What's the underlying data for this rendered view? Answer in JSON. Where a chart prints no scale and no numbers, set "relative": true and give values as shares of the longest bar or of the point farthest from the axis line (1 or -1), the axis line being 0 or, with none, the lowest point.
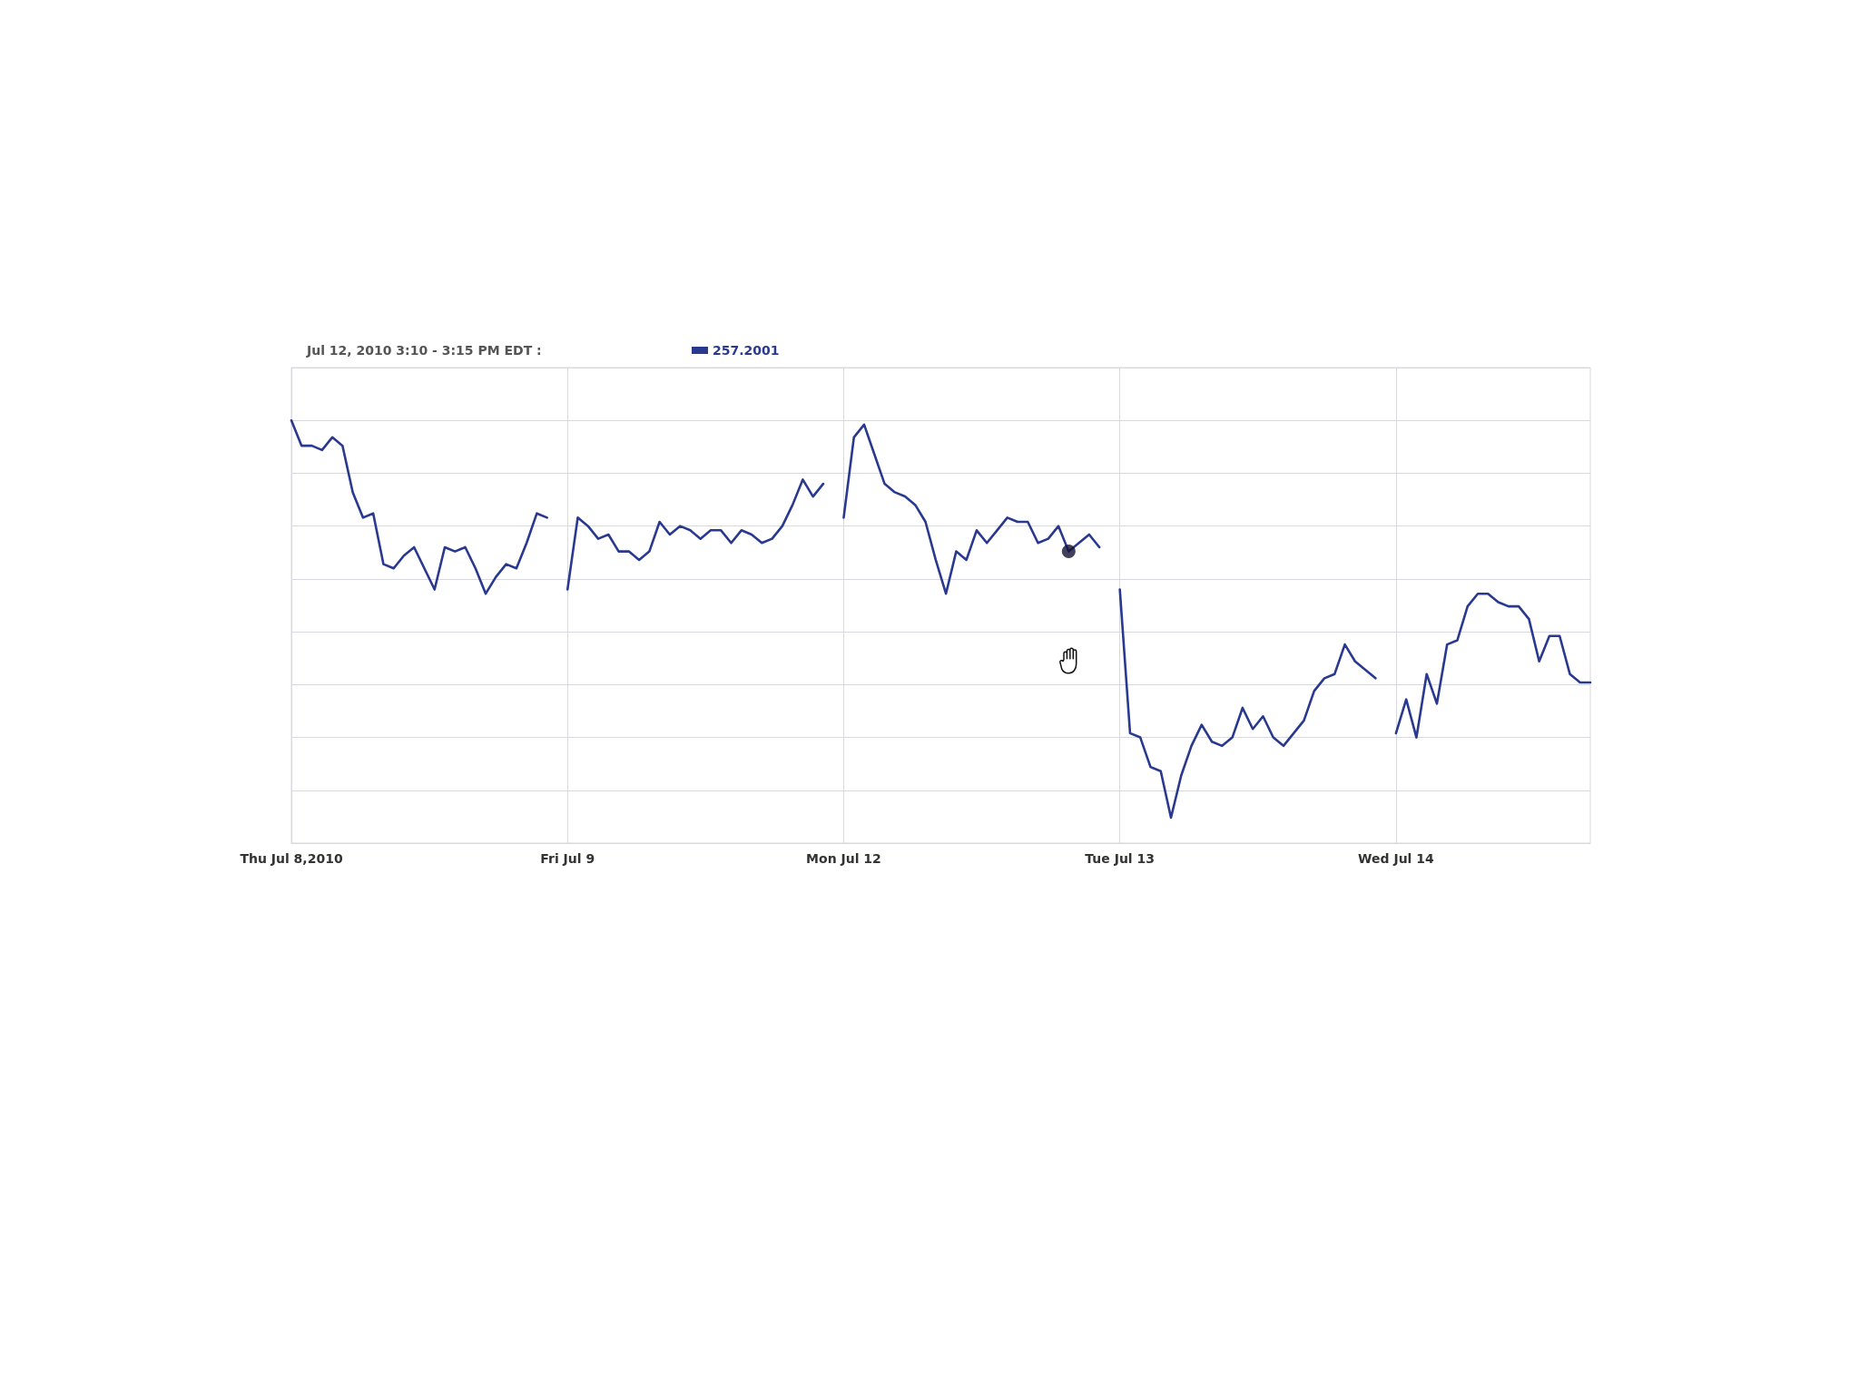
{
  "chart_data": {
    "type": "line",
    "title": "Jul 12, 2010 3:10 - 3:15 PM EDT :",
    "relative": true,
    "grid": true,
    "legend": "top left",
    "categories": [
      "Thu Jul 8,2010",
      null,
      null,
      null,
      null,
      null,
      null,
      null,
      null,
      null,
      null,
      null,
      null,
      null,
      null,
      null,
      null,
      null,
      null,
      null,
      null,
      null,
      null,
      null,
      null,
      null,
      null,
      "Fri Jul 9",
      null,
      null,
      null,
      null,
      null,
      null,
      null,
      null,
      null,
      null,
      null,
      null,
      null,
      null,
      null,
      null,
      null,
      null,
      null,
      null,
      null,
      null,
      null,
      null,
      null,
      null,
      "Mon Jul 12",
      null,
      null,
      null,
      null,
      null,
      null,
      null,
      null,
      null,
      null,
      null,
      null,
      null,
      null,
      null,
      null,
      null,
      null,
      null,
      null,
      null,
      null,
      null,
      null,
      null,
      null,
      "Tue Jul 13",
      null,
      null,
      null,
      null,
      null,
      null,
      null,
      null,
      null,
      null,
      null,
      null,
      null,
      null,
      null,
      null,
      null,
      null,
      null,
      null,
      null,
      null,
      null,
      null,
      null,
      null,
      "Wed Jul 14",
      null,
      null,
      null,
      null,
      null,
      null,
      null,
      null,
      null,
      null,
      null,
      null,
      null,
      null,
      null,
      null,
      null,
      null,
      null
    ],
    "series": [
      {
        "name": "257.2001",
        "color": "#29398f",
        "values": [
          1,
          0.94,
          0.94,
          0.93,
          0.96,
          0.94,
          0.83,
          0.77,
          0.78,
          0.66,
          0.65,
          0.68,
          0.7,
          0.65,
          0.6,
          0.7,
          0.69,
          0.7,
          0.65,
          0.59,
          0.63,
          0.66,
          0.65,
          0.71,
          0.78,
          0.77,
          null,
          0.6,
          0.77,
          0.75,
          0.72,
          0.73,
          0.69,
          0.69,
          0.67,
          0.69,
          0.76,
          0.73,
          0.75,
          0.74,
          0.72,
          0.74,
          0.74,
          0.71,
          0.74,
          0.73,
          0.71,
          0.72,
          0.75,
          0.8,
          0.86,
          0.82,
          0.85,
          null,
          0.77,
          0.96,
          0.99,
          0.92,
          0.85,
          0.83,
          0.82,
          0.8,
          0.76,
          0.67,
          0.59,
          0.69,
          0.67,
          0.74,
          0.71,
          0.74,
          0.77,
          0.76,
          0.76,
          0.71,
          0.72,
          0.75,
          0.69,
          0.71,
          0.73,
          0.7,
          null,
          0.6,
          0.26,
          0.25,
          0.18,
          0.17,
          0.06,
          0.16,
          0.23,
          0.28,
          0.24,
          0.23,
          0.25,
          0.32,
          0.27,
          0.3,
          0.25,
          0.23,
          0.26,
          0.29,
          0.36,
          0.39,
          0.4,
          0.47,
          0.43,
          0.41,
          0.39,
          null,
          0.26,
          0.34,
          0.25,
          0.4,
          0.33,
          0.47,
          0.48,
          0.56,
          0.59,
          0.59,
          0.57,
          0.56,
          0.56,
          0.53,
          0.43,
          0.49,
          0.49,
          0.4,
          0.38,
          0.38
        ]
      },
      {
        "type": "scatter",
        "color": "#111133",
        "values": [
          null,
          null,
          null,
          null,
          null,
          null,
          null,
          null,
          null,
          null,
          null,
          null,
          null,
          null,
          null,
          null,
          null,
          null,
          null,
          null,
          null,
          null,
          null,
          null,
          null,
          null,
          null,
          null,
          null,
          null,
          null,
          null,
          null,
          null,
          null,
          null,
          null,
          null,
          null,
          null,
          null,
          null,
          null,
          null,
          null,
          null,
          null,
          null,
          null,
          null,
          null,
          null,
          null,
          null,
          null,
          null,
          null,
          null,
          null,
          null,
          null,
          null,
          null,
          null,
          null,
          null,
          null,
          null,
          null,
          null,
          null,
          null,
          null,
          null,
          null,
          null,
          0.69,
          null,
          null,
          null,
          null,
          null,
          null,
          null,
          null,
          null,
          null,
          null,
          null,
          null,
          null,
          null,
          null,
          null,
          null,
          null,
          null,
          null,
          null,
          null,
          null,
          null,
          null,
          null,
          null,
          null,
          null,
          null,
          null,
          null,
          null,
          null,
          null,
          null,
          null,
          null,
          null,
          null,
          null,
          null,
          null,
          null,
          null,
          null,
          null,
          null,
          null,
          null
        ]
      }
    ]
  }
}
